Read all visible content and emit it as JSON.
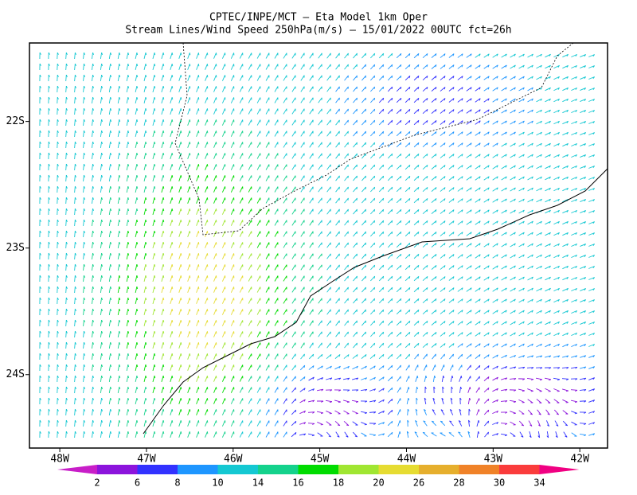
{
  "chart_data": {
    "type": "streamlines",
    "title": "CPTEC/INPE/MCT —  Eta Model 1km Oper",
    "subtitle": "Stream Lines/Wind Speed 250hPa(m/s) — 15/01/2022 00UTC fct=26h",
    "xlim": [
      -48.35,
      -41.68
    ],
    "xticks": [
      {
        "value": -48,
        "label": "48W"
      },
      {
        "value": -47,
        "label": "47W"
      },
      {
        "value": -46,
        "label": "46W"
      },
      {
        "value": -45,
        "label": "45W"
      },
      {
        "value": -44,
        "label": "44W"
      },
      {
        "value": -43,
        "label": "43W"
      },
      {
        "value": -42,
        "label": "42W"
      }
    ],
    "ylim": [
      -24.58,
      -21.38
    ],
    "yticks": [
      {
        "value": -22,
        "label": "22S"
      },
      {
        "value": -23,
        "label": "23S"
      },
      {
        "value": -24,
        "label": "24S"
      }
    ],
    "colorbar": {
      "levels": [
        2,
        6,
        8,
        10,
        14,
        16,
        18,
        20,
        26,
        28,
        30,
        34
      ],
      "colors": [
        "#c81ec8",
        "#8c14dc",
        "#3232ff",
        "#1e96ff",
        "#14c8d2",
        "#14d28c",
        "#00dc00",
        "#a0e632",
        "#e6dc32",
        "#e6af2d",
        "#f08228",
        "#fa3c3c",
        "#f00082"
      ]
    }
  }
}
